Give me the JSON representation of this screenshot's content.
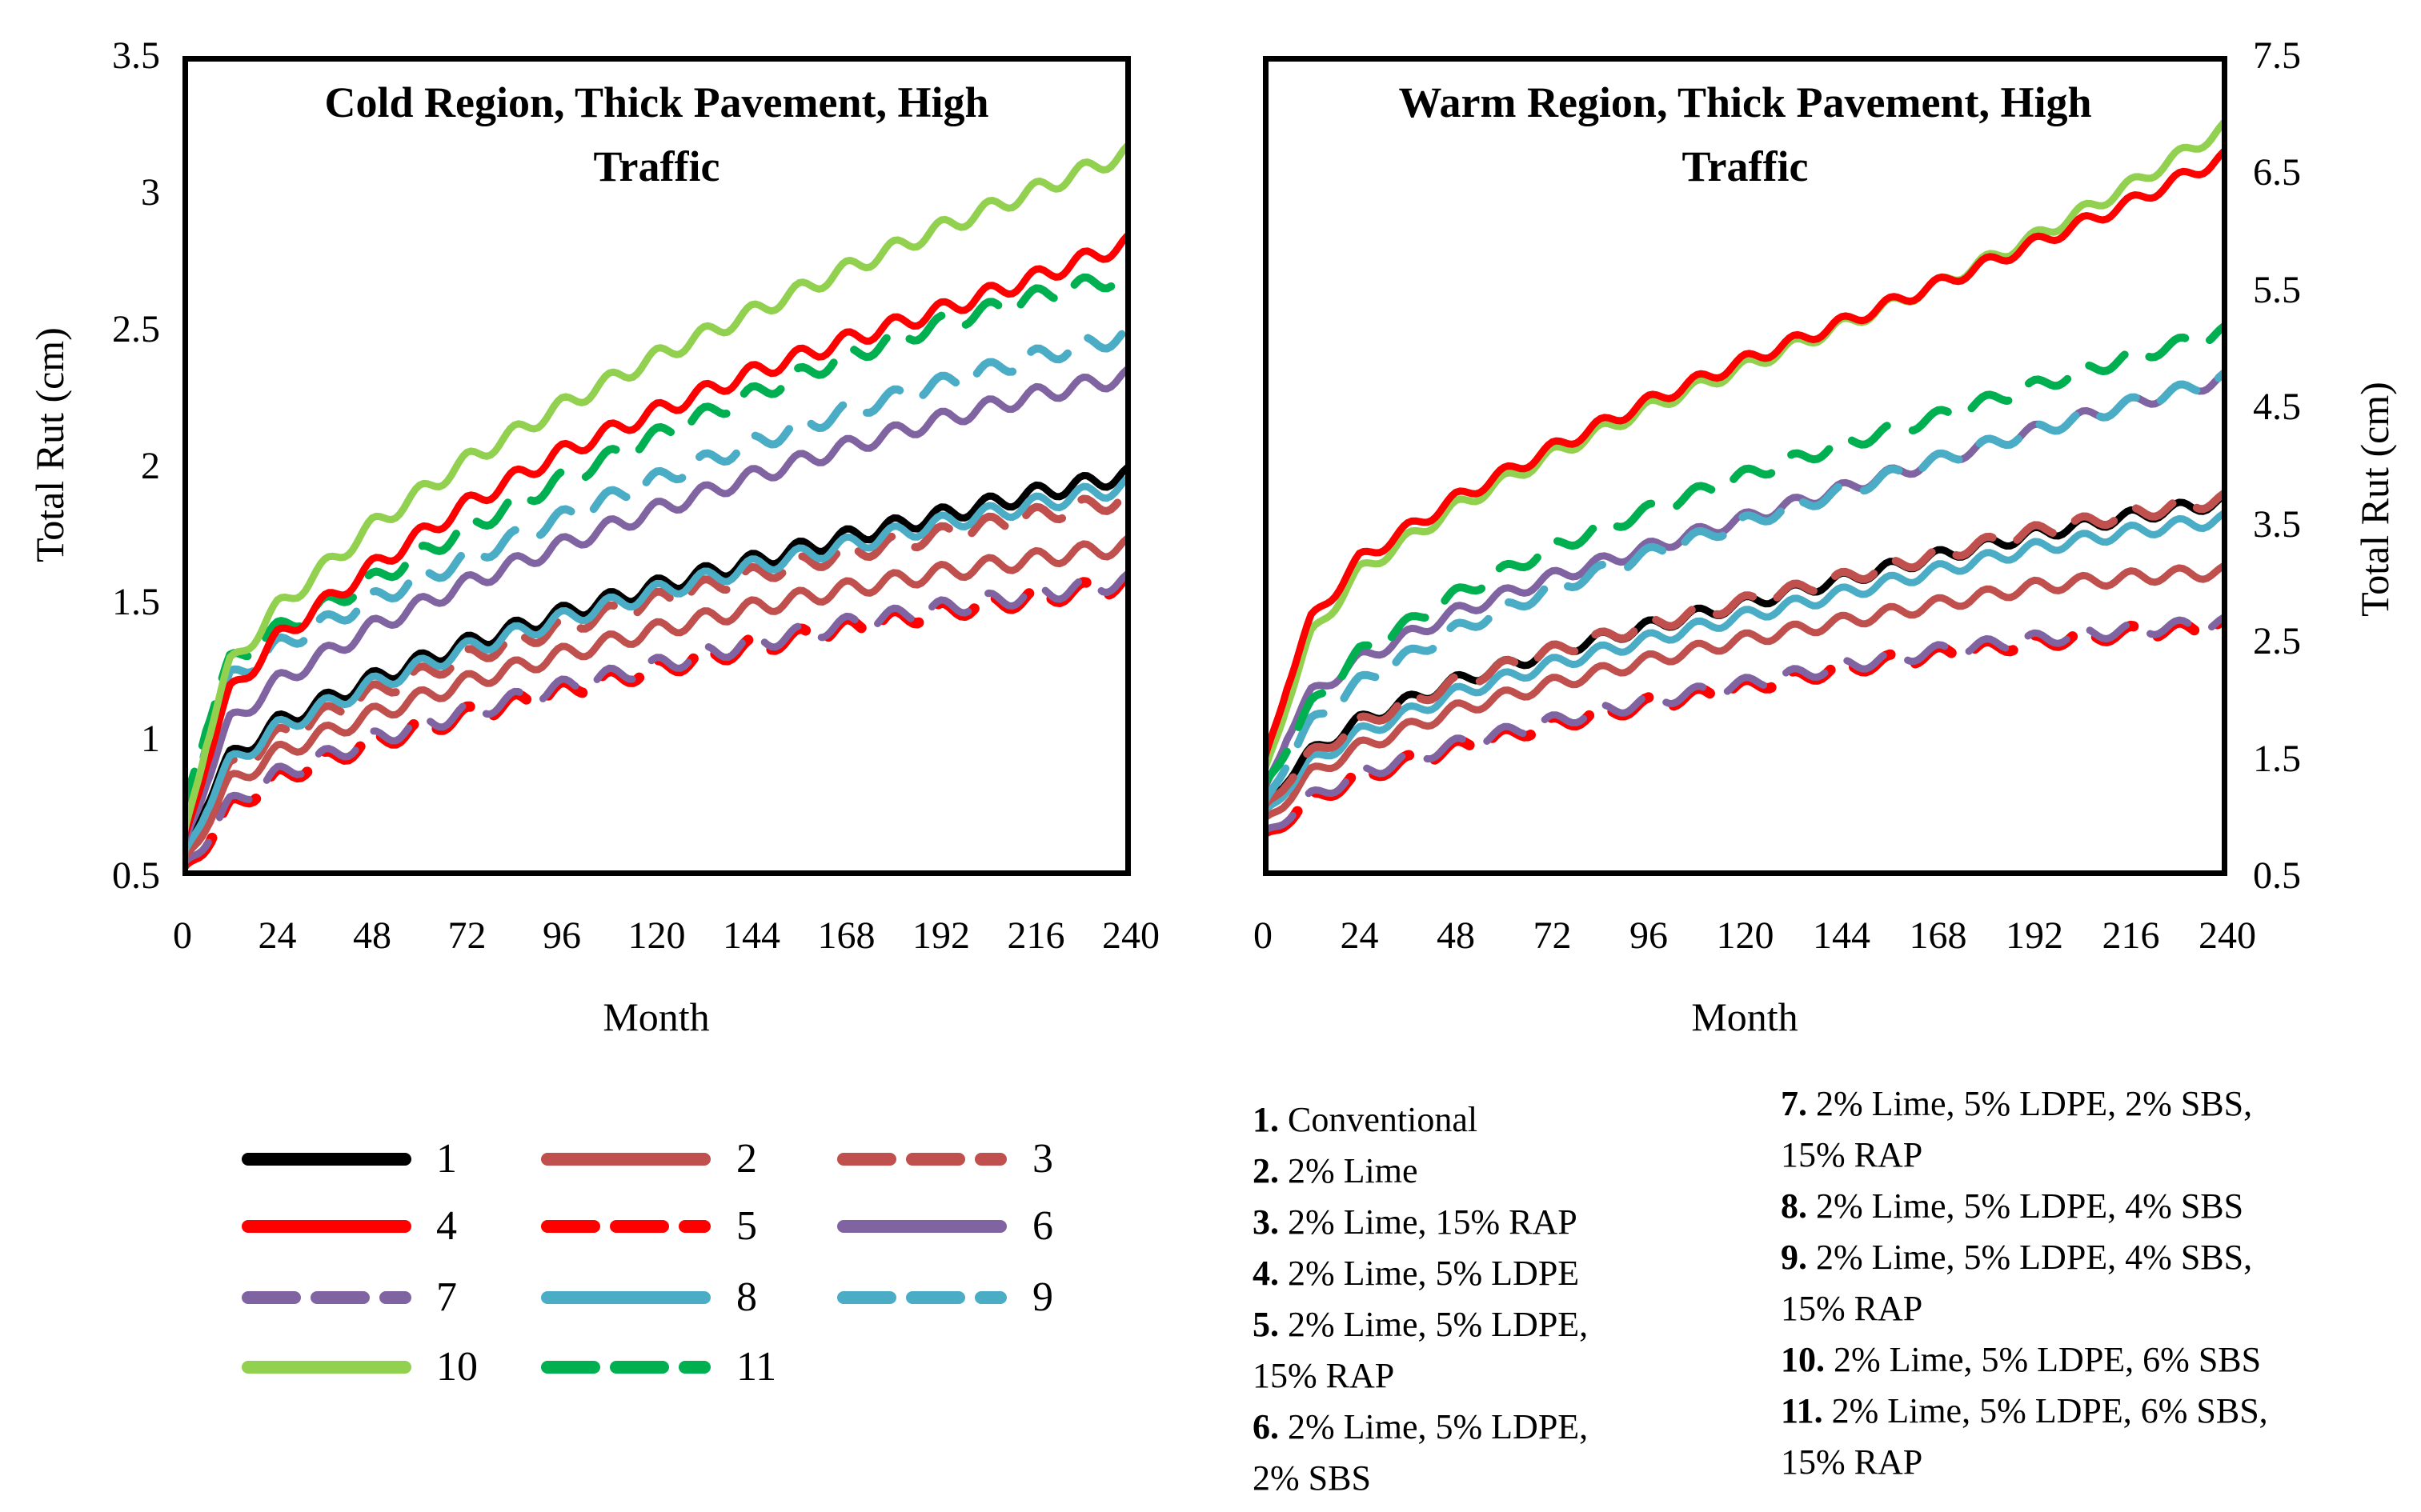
{
  "figure": {
    "background": "#ffffff",
    "month_axis_label": "Month",
    "rut_axis_label": "Total Rut (cm)"
  },
  "chart_data": [
    {
      "type": "line",
      "title": "Cold Region, Thick Pavement, High Traffic",
      "title_lines": [
        "Cold Region, Thick Pavement, High",
        "Traffic"
      ],
      "xlabel": "Month",
      "ylabel": "Total Rut (cm)",
      "ylabel_side": "left",
      "xlim": [
        0,
        240
      ],
      "ylim": [
        0.5,
        3.5
      ],
      "xticks": [
        0,
        24,
        48,
        72,
        96,
        120,
        144,
        168,
        192,
        216,
        240
      ],
      "yticks": [
        3.5,
        3,
        2.5,
        2,
        1.5,
        1,
        0.5
      ],
      "grid": false,
      "legend_position": "below",
      "seasonal_wiggle_amplitude_cm": 0.03,
      "seasonal_period_months": 12,
      "months": [
        0,
        6,
        12,
        24,
        48,
        72,
        96,
        120,
        144,
        168,
        192,
        216,
        240
      ],
      "draw_order": [
        "5",
        "7",
        "2",
        "3",
        "1",
        "8",
        "6",
        "9",
        "11",
        "4",
        "10"
      ],
      "series": {
        "1": [
          0.55,
          0.78,
          0.93,
          1.06,
          1.22,
          1.35,
          1.46,
          1.56,
          1.65,
          1.74,
          1.82,
          1.9,
          1.97
        ],
        "2": [
          0.52,
          0.7,
          0.84,
          0.95,
          1.09,
          1.21,
          1.31,
          1.4,
          1.48,
          1.55,
          1.61,
          1.66,
          1.71
        ],
        "3": [
          0.53,
          0.74,
          0.89,
          1.01,
          1.17,
          1.3,
          1.41,
          1.51,
          1.6,
          1.68,
          1.75,
          1.82,
          1.88
        ],
        "4": [
          0.58,
          0.93,
          1.17,
          1.37,
          1.63,
          1.86,
          2.05,
          2.2,
          2.34,
          2.46,
          2.57,
          2.69,
          2.82
        ],
        "5": [
          0.5,
          0.63,
          0.75,
          0.86,
          0.99,
          1.09,
          1.18,
          1.26,
          1.34,
          1.41,
          1.47,
          1.52,
          1.57
        ],
        "6": [
          0.57,
          0.86,
          1.06,
          1.21,
          1.41,
          1.57,
          1.71,
          1.84,
          1.96,
          2.07,
          2.17,
          2.26,
          2.33
        ],
        "7": [
          0.51,
          0.64,
          0.76,
          0.87,
          1.0,
          1.1,
          1.19,
          1.27,
          1.35,
          1.42,
          1.48,
          1.53,
          1.58
        ],
        "8": [
          0.54,
          0.76,
          0.91,
          1.04,
          1.2,
          1.33,
          1.44,
          1.54,
          1.63,
          1.71,
          1.79,
          1.86,
          1.93
        ],
        "9": [
          0.66,
          1.0,
          1.22,
          1.34,
          1.51,
          1.66,
          1.81,
          1.95,
          2.08,
          2.2,
          2.3,
          2.4,
          2.48
        ],
        "10": [
          0.6,
          1.0,
          1.27,
          1.48,
          1.78,
          2.02,
          2.22,
          2.4,
          2.56,
          2.72,
          2.87,
          3.01,
          3.15
        ],
        "11": [
          0.7,
          1.06,
          1.28,
          1.4,
          1.58,
          1.77,
          1.95,
          2.11,
          2.26,
          2.4,
          2.52,
          2.62,
          2.7
        ]
      }
    },
    {
      "type": "line",
      "title": "Warm Region, Thick Pavement, High Traffic",
      "title_lines": [
        "Warm Region, Thick Pavement, High",
        "Traffic"
      ],
      "xlabel": "Month",
      "ylabel": "Total Rut (cm)",
      "ylabel_side": "right",
      "xlim": [
        0,
        240
      ],
      "ylim": [
        0.5,
        7.5
      ],
      "xticks": [
        0,
        24,
        48,
        72,
        96,
        120,
        144,
        168,
        192,
        216,
        240
      ],
      "yticks": [
        7.5,
        6.5,
        5.5,
        4.5,
        3.5,
        2.5,
        1.5,
        0.5
      ],
      "grid": false,
      "legend_position": "below",
      "seasonal_wiggle_amplitude_cm": 0.055,
      "seasonal_period_months": 12,
      "months": [
        0,
        6,
        12,
        24,
        48,
        72,
        96,
        120,
        144,
        168,
        192,
        216,
        240
      ],
      "draw_order": [
        "5",
        "7",
        "2",
        "8",
        "1",
        "3",
        "6",
        "9",
        "11",
        "10",
        "4"
      ],
      "series": {
        "1": [
          1.05,
          1.35,
          1.55,
          1.82,
          2.16,
          2.42,
          2.63,
          2.83,
          3.03,
          3.23,
          3.42,
          3.57,
          3.7
        ],
        "2": [
          0.92,
          1.17,
          1.37,
          1.6,
          1.92,
          2.14,
          2.34,
          2.52,
          2.67,
          2.82,
          2.97,
          3.05,
          3.1
        ],
        "3": [
          1.03,
          1.33,
          1.53,
          1.8,
          2.15,
          2.42,
          2.64,
          2.84,
          3.04,
          3.24,
          3.44,
          3.59,
          3.72
        ],
        "4": [
          1.4,
          2.15,
          2.68,
          3.2,
          3.72,
          4.15,
          4.55,
          4.9,
          5.22,
          5.55,
          5.9,
          6.25,
          6.65
        ],
        "5": [
          0.8,
          1.0,
          1.15,
          1.35,
          1.6,
          1.8,
          1.97,
          2.12,
          2.27,
          2.4,
          2.5,
          2.58,
          2.64
        ],
        "6": [
          1.15,
          1.72,
          2.05,
          2.35,
          2.75,
          3.05,
          3.3,
          3.55,
          3.8,
          4.05,
          4.3,
          4.53,
          4.75
        ],
        "7": [
          0.82,
          1.02,
          1.17,
          1.37,
          1.62,
          1.82,
          1.99,
          2.14,
          2.29,
          2.42,
          2.52,
          2.6,
          2.66
        ],
        "8": [
          0.98,
          1.27,
          1.47,
          1.72,
          2.06,
          2.31,
          2.52,
          2.72,
          2.91,
          3.11,
          3.3,
          3.44,
          3.55
        ],
        "9": [
          1.05,
          1.5,
          1.8,
          2.15,
          2.6,
          2.95,
          3.25,
          3.52,
          3.78,
          4.05,
          4.3,
          4.53,
          4.75
        ],
        "10": [
          1.3,
          2.0,
          2.55,
          3.1,
          3.65,
          4.1,
          4.5,
          4.85,
          5.2,
          5.55,
          5.95,
          6.4,
          6.9
        ],
        "11": [
          1.2,
          1.62,
          1.95,
          2.4,
          2.9,
          3.3,
          3.62,
          3.92,
          4.18,
          4.42,
          4.68,
          4.93,
          5.15
        ]
      }
    }
  ],
  "legend": {
    "items": [
      {
        "id": "1",
        "color": "#000000",
        "dashed": false
      },
      {
        "id": "2",
        "color": "#C0504D",
        "dashed": false
      },
      {
        "id": "3",
        "color": "#C0504D",
        "dashed": true
      },
      {
        "id": "4",
        "color": "#FF0000",
        "dashed": false
      },
      {
        "id": "5",
        "color": "#FF0000",
        "dashed": true
      },
      {
        "id": "6",
        "color": "#8064A2",
        "dashed": false
      },
      {
        "id": "7",
        "color": "#8064A2",
        "dashed": true
      },
      {
        "id": "8",
        "color": "#4BACC6",
        "dashed": false
      },
      {
        "id": "9",
        "color": "#4BACC6",
        "dashed": true
      },
      {
        "id": "10",
        "color": "#92D050",
        "dashed": false
      },
      {
        "id": "11",
        "color": "#00B050",
        "dashed": true
      }
    ],
    "swatch_rows": [
      [
        "1",
        "2",
        "3"
      ],
      [
        "4",
        "5",
        "6"
      ],
      [
        "7",
        "8",
        "9"
      ],
      [
        "10",
        "11"
      ]
    ],
    "descriptions_left": [
      {
        "num": "1.",
        "text": "Conventional"
      },
      {
        "num": "2.",
        "text": "2% Lime"
      },
      {
        "num": "3.",
        "text": "2% Lime, 15% RAP"
      },
      {
        "num": "4.",
        "text": "2% Lime, 5% LDPE"
      },
      {
        "num": "5.",
        "text": "2% Lime, 5% LDPE,"
      },
      {
        "num": "",
        "text": "15% RAP"
      },
      {
        "num": "6.",
        "text": "2% Lime, 5% LDPE,"
      },
      {
        "num": "",
        "text": "2% SBS"
      }
    ],
    "descriptions_right": [
      {
        "num": "7.",
        "text": "2% Lime, 5% LDPE, 2% SBS,"
      },
      {
        "num": "",
        "text": "15% RAP"
      },
      {
        "num": "8.",
        "text": "2% Lime, 5% LDPE, 4% SBS"
      },
      {
        "num": "9.",
        "text": "2% Lime, 5% LDPE, 4% SBS,"
      },
      {
        "num": "",
        "text": "15% RAP"
      },
      {
        "num": "10.",
        "text": "2% Lime, 5% LDPE, 6% SBS"
      },
      {
        "num": "11.",
        "text": "2% Lime, 5% LDPE, 6% SBS,"
      },
      {
        "num": "",
        "text": "15% RAP"
      }
    ]
  }
}
